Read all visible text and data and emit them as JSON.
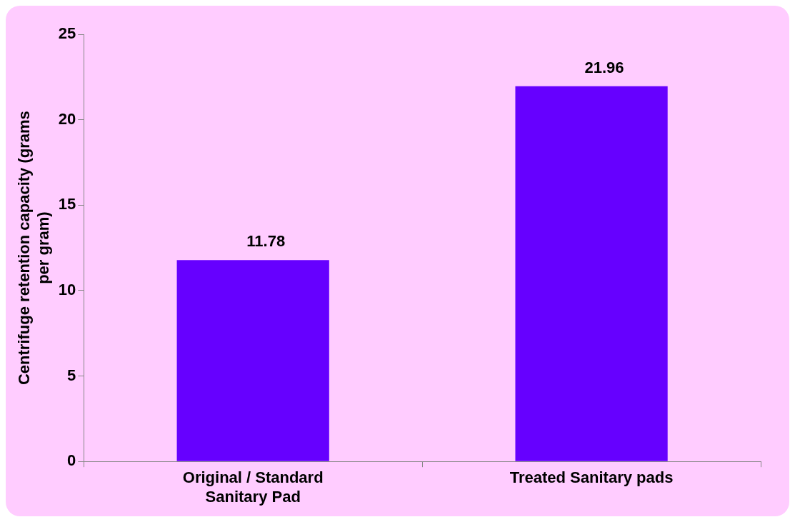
{
  "chart_data": {
    "type": "bar",
    "ylabel": "Centrifuge retention capacity (grams per gram)",
    "categories": [
      "Original / Standard Sanitary Pad",
      "Treated Sanitary pads"
    ],
    "values": [
      11.78,
      21.96
    ],
    "color": "#6600ff",
    "ylim": [
      0,
      25
    ],
    "yticks": [
      0,
      5,
      10,
      15,
      20,
      25
    ],
    "data_labels": true
  }
}
